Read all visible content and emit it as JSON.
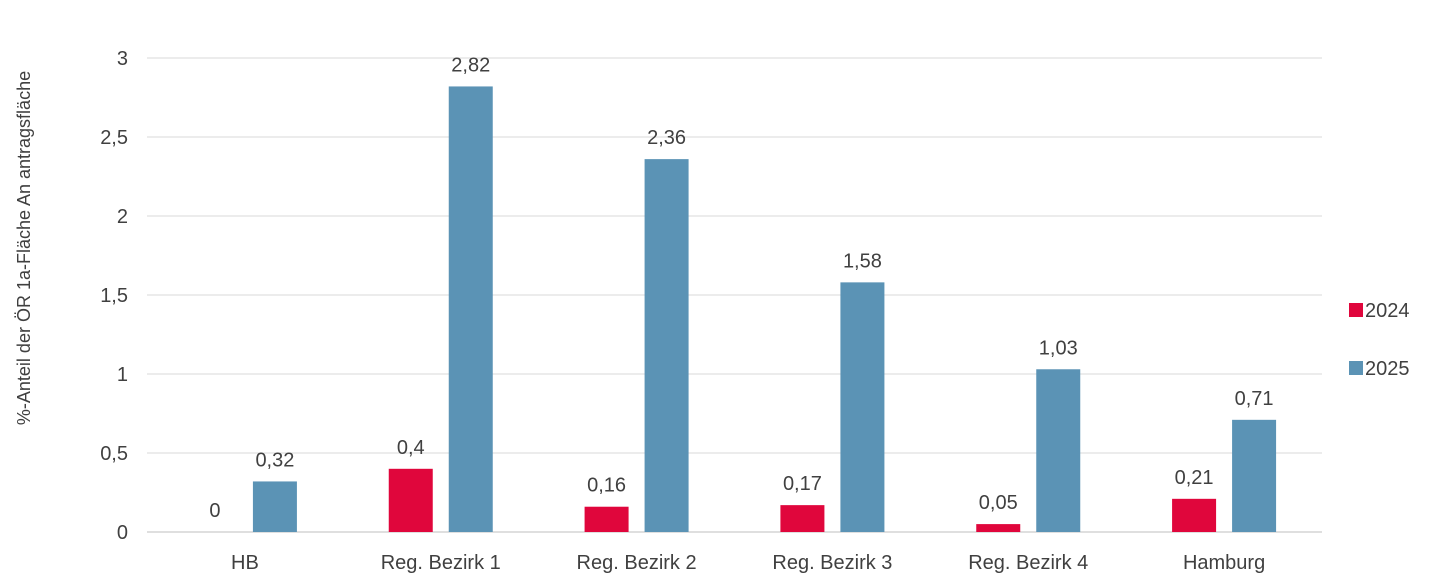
{
  "chart_data": {
    "type": "bar",
    "title": "",
    "xlabel": "",
    "ylabel": "%-Anteil der ÖR 1a-Fläche An antragsfläche",
    "categories": [
      "HB",
      "Reg. Bezirk 1",
      "Reg. Bezirk 2",
      "Reg. Bezirk 3",
      "Reg. Bezirk 4",
      "Hamburg"
    ],
    "series": [
      {
        "name": "2024",
        "color": "#e0063c",
        "values": [
          0,
          0.4,
          0.16,
          0.17,
          0.05,
          0.21
        ],
        "labels": [
          "0",
          "0,4",
          "0,16",
          "0,17",
          "0,05",
          "0,21"
        ]
      },
      {
        "name": "2025",
        "color": "#5b93b5",
        "values": [
          0.32,
          2.82,
          2.36,
          1.58,
          1.03,
          0.71
        ],
        "labels": [
          "0,32",
          "2,82",
          "2,36",
          "1,58",
          "1,03",
          "0,71"
        ]
      }
    ],
    "ylim": [
      0,
      3
    ],
    "yticks": [
      {
        "value": 0,
        "label": "0"
      },
      {
        "value": 0.5,
        "label": "0,5"
      },
      {
        "value": 1,
        "label": "1"
      },
      {
        "value": 1.5,
        "label": "1,5"
      },
      {
        "value": 2,
        "label": "2"
      },
      {
        "value": 2.5,
        "label": "2,5"
      },
      {
        "value": 3,
        "label": "3"
      }
    ],
    "grid": true,
    "legend_position": "right",
    "gridline_color": "#d9d9d9",
    "axis_color": "#bfbfbf"
  }
}
